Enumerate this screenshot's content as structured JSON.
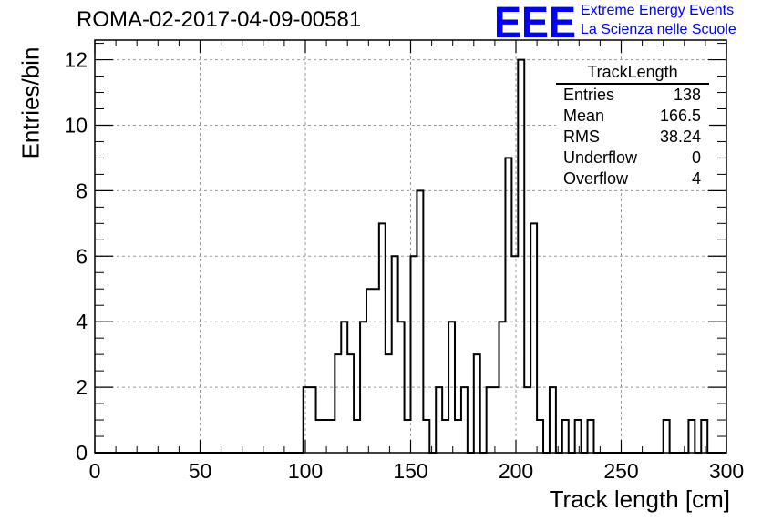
{
  "header": {
    "run_title": "ROMA-02-2017-04-09-00581",
    "logo_text": "EEE",
    "logo_line1": "Extreme Energy Events",
    "logo_line2": "La Scienza nelle Scuole"
  },
  "stats_box": {
    "title": "TrackLength",
    "rows": [
      {
        "label": "Entries",
        "value": "138"
      },
      {
        "label": "Mean",
        "value": "166.5"
      },
      {
        "label": "RMS",
        "value": "38.24"
      },
      {
        "label": "Underflow",
        "value": "0"
      },
      {
        "label": "Overflow",
        "value": "4"
      }
    ]
  },
  "colors": {
    "line": "#000000",
    "grid": "#999999",
    "logo": "#0000ff",
    "background": "#ffffff"
  },
  "chart_data": {
    "type": "bar",
    "title": "ROMA-02-2017-04-09-00581",
    "xlabel": "Track length [cm]",
    "ylabel": "Entries/bin",
    "xlim": [
      0,
      300
    ],
    "ylim": [
      0,
      12.6
    ],
    "grid": true,
    "legend": "top-right",
    "x_ticks": [
      0,
      50,
      100,
      150,
      200,
      250,
      300
    ],
    "y_ticks": [
      0,
      2,
      4,
      6,
      8,
      10,
      12
    ],
    "bin_edges": [
      0,
      3,
      6,
      9,
      12,
      15,
      18,
      21,
      24,
      27,
      30,
      33,
      36,
      39,
      42,
      45,
      48,
      51,
      54,
      57,
      60,
      63,
      66,
      69,
      72,
      75,
      78,
      81,
      84,
      87,
      90,
      93,
      96,
      99,
      102,
      105,
      108,
      111,
      114,
      117,
      120,
      123,
      126,
      129,
      132,
      135,
      138,
      141,
      144,
      147,
      150,
      153,
      156,
      159,
      162,
      165,
      168,
      171,
      174,
      177,
      180,
      183,
      186,
      189,
      192,
      195,
      198,
      201,
      204,
      207,
      210,
      213,
      216,
      219,
      222,
      225,
      228,
      231,
      234,
      237,
      240,
      243,
      246,
      249,
      252,
      255,
      258,
      261,
      264,
      267,
      270,
      273,
      276,
      279,
      282,
      285,
      288,
      291,
      294,
      297,
      300
    ],
    "values": [
      0,
      0,
      0,
      0,
      0,
      0,
      0,
      0,
      0,
      0,
      0,
      0,
      0,
      0,
      0,
      0,
      0,
      0,
      0,
      0,
      0,
      0,
      0,
      0,
      0,
      0,
      0,
      0,
      0,
      0,
      0,
      0,
      0,
      2,
      2,
      1,
      1,
      1,
      3,
      4,
      3,
      1,
      4,
      5,
      5,
      7,
      3,
      6,
      4,
      1,
      6,
      8,
      1,
      0,
      2,
      1,
      4,
      1,
      2,
      0,
      3,
      0,
      2,
      2,
      4,
      9,
      6,
      12,
      2,
      7,
      1,
      0,
      2,
      0,
      1,
      0,
      1,
      0,
      1,
      0,
      0,
      0,
      0,
      0,
      0,
      0,
      0,
      0,
      0,
      0,
      1,
      0,
      0,
      0,
      1,
      0,
      1,
      0,
      0,
      0
    ]
  }
}
